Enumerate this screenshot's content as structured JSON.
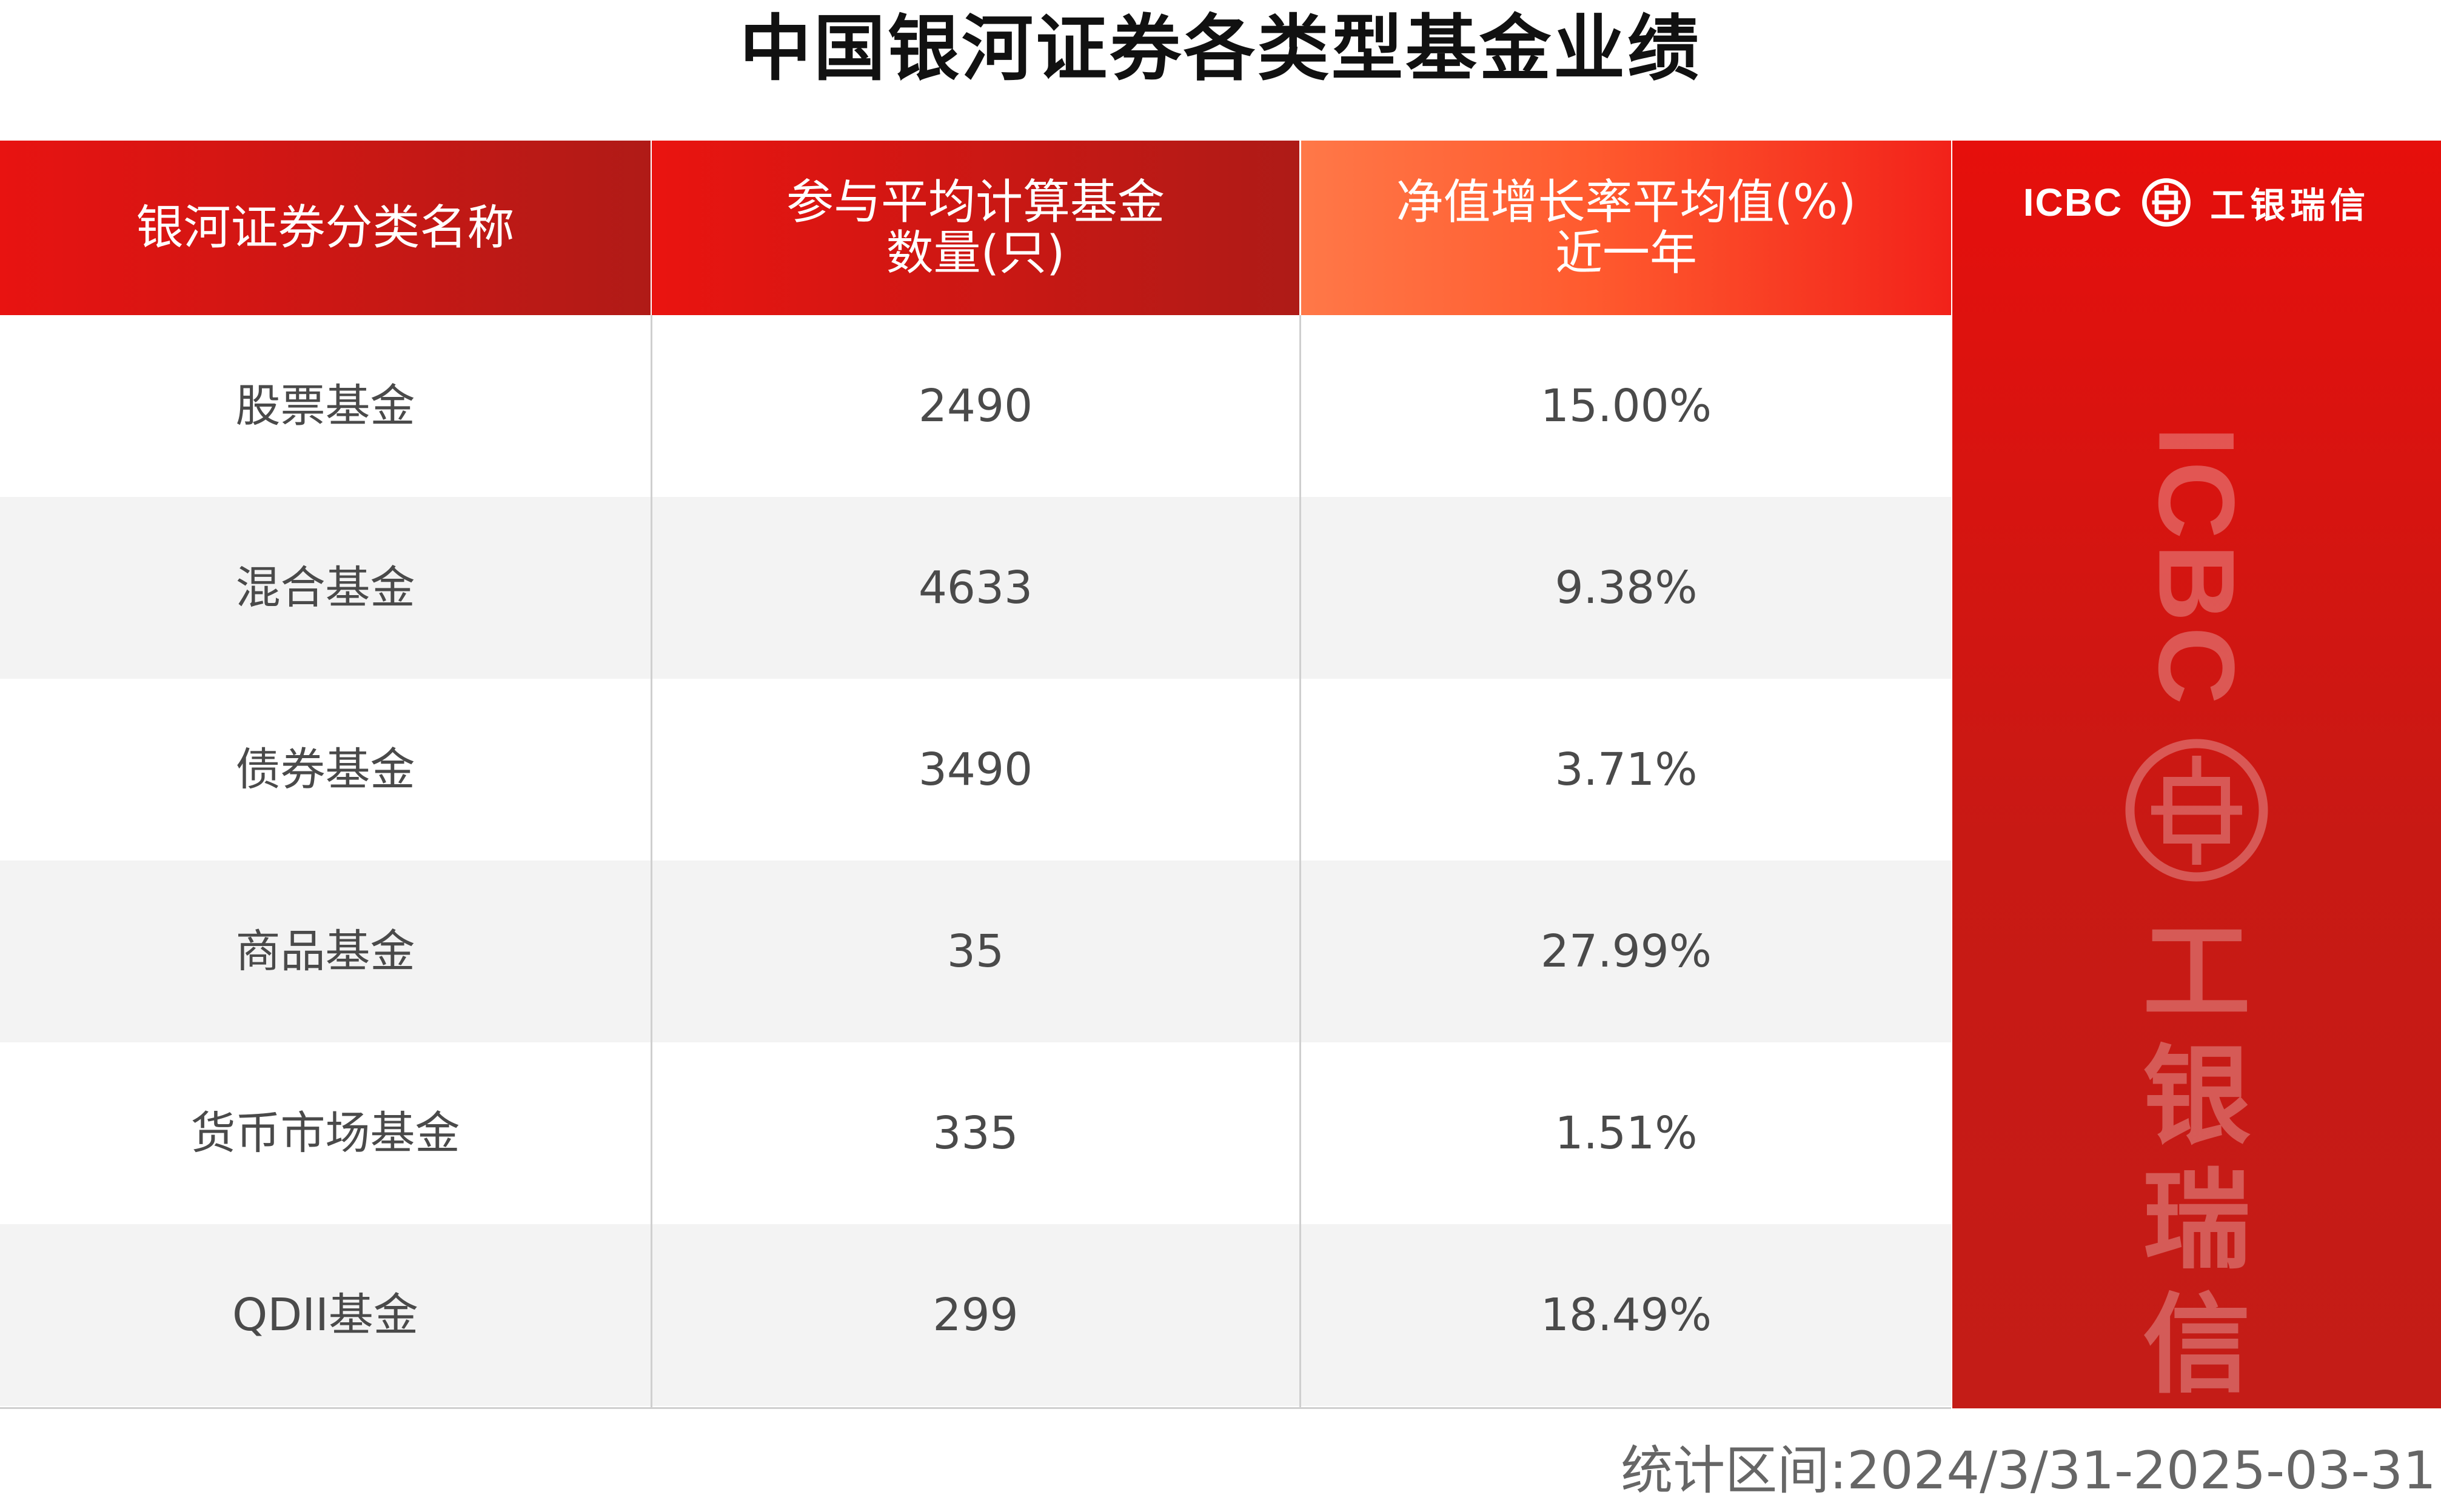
{
  "title": "中国银河证券各类型基金业绩",
  "table": {
    "headers": [
      {
        "lines": [
          "银河证券分类名称"
        ]
      },
      {
        "lines": [
          "参与平均计算基金",
          "数量(只)"
        ]
      },
      {
        "lines": [
          "净值增长率平均值(%)",
          "近一年"
        ]
      }
    ],
    "rows": [
      {
        "category": "股票基金",
        "count": "2490",
        "growth": "15.00%"
      },
      {
        "category": "混合基金",
        "count": "4633",
        "growth": "9.38%"
      },
      {
        "category": "债券基金",
        "count": "3490",
        "growth": "3.71%"
      },
      {
        "category": "商品基金",
        "count": "35",
        "growth": "27.99%"
      },
      {
        "category": "货币市场基金",
        "count": "335",
        "growth": "1.51%"
      },
      {
        "category": "QDII基金",
        "count": "299",
        "growth": "18.49%"
      }
    ]
  },
  "brand": {
    "logo_text": "ICBC",
    "name_cn": "工银瑞信",
    "seal_icon": "icbc-seal-icon",
    "panel_color": "#d4150f"
  },
  "colors": {
    "header_red": "#e81311",
    "header_orange": "#ff7848",
    "row_alt": "#f3f3f3"
  },
  "footer": {
    "period": "统计区间:2024/3/31-2025-03-31"
  }
}
